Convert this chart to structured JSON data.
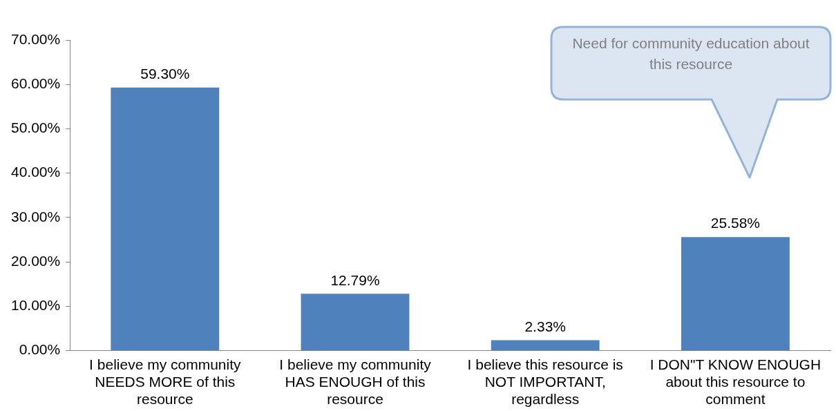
{
  "chart_data": {
    "type": "bar",
    "categories": [
      "I believe my community NEEDS MORE of this resource",
      "I believe my community HAS ENOUGH of this resource",
      "I believe this resource is NOT IMPORTANT, regardless",
      "I DON\"T KNOW ENOUGH about this resource to comment"
    ],
    "values": [
      59.3,
      12.79,
      2.33,
      25.58
    ],
    "value_labels": [
      "59.30%",
      "12.79%",
      "2.33%",
      "25.58%"
    ],
    "color": "#4f81bd",
    "ylim": [
      0,
      70
    ],
    "yticks": [
      {
        "value": 0,
        "label": "0.00%"
      },
      {
        "value": 10,
        "label": "10.00%"
      },
      {
        "value": 20,
        "label": "20.00%"
      },
      {
        "value": 30,
        "label": "30.00%"
      },
      {
        "value": 40,
        "label": "40.00%"
      },
      {
        "value": 50,
        "label": "50.00%"
      },
      {
        "value": 60,
        "label": "60.00%"
      },
      {
        "value": 70,
        "label": "70.00%"
      }
    ],
    "grid": false,
    "legend": false,
    "annotations": [
      "Need for community education about this resource"
    ]
  }
}
